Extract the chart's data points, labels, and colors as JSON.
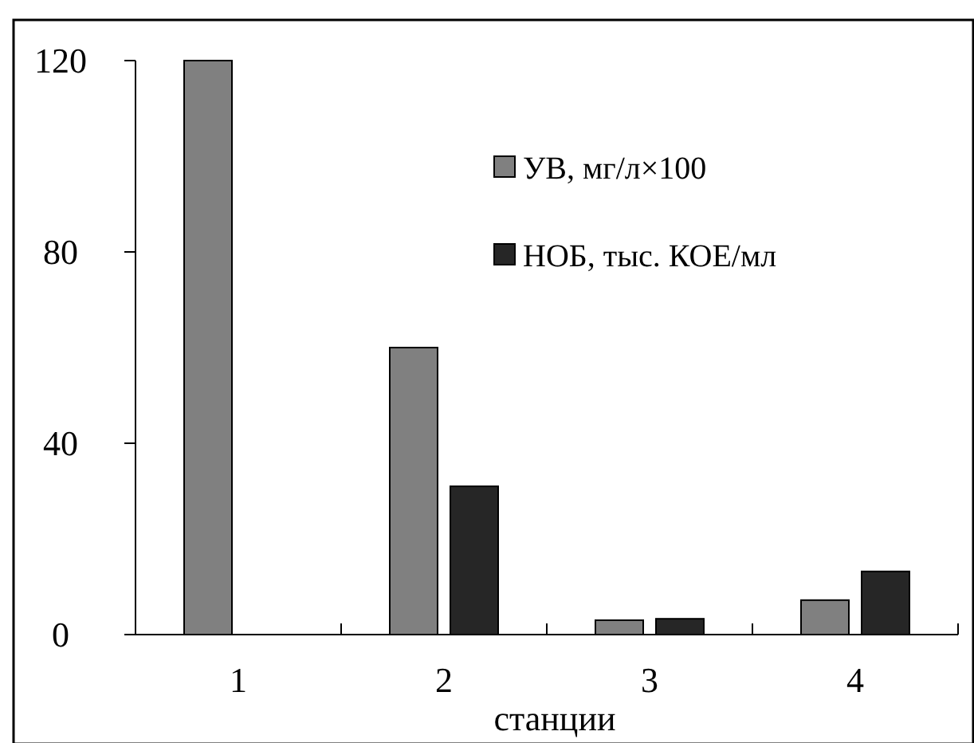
{
  "chart_data": {
    "type": "bar",
    "xlabel": "станции",
    "categories": [
      "1",
      "2",
      "3",
      "4"
    ],
    "series": [
      {
        "name": "УВ, мг/л×100",
        "color": "#808080",
        "values": [
          120,
          60,
          3,
          7.2
        ]
      },
      {
        "name": "НОБ, тыс. КОЕ/мл",
        "color": "#262626",
        "values": [
          null,
          31,
          3.3,
          13.2
        ]
      }
    ],
    "ylim": [
      0,
      120
    ],
    "yticks": [
      0,
      40,
      80,
      120
    ],
    "grid": false,
    "legend": "top right"
  }
}
